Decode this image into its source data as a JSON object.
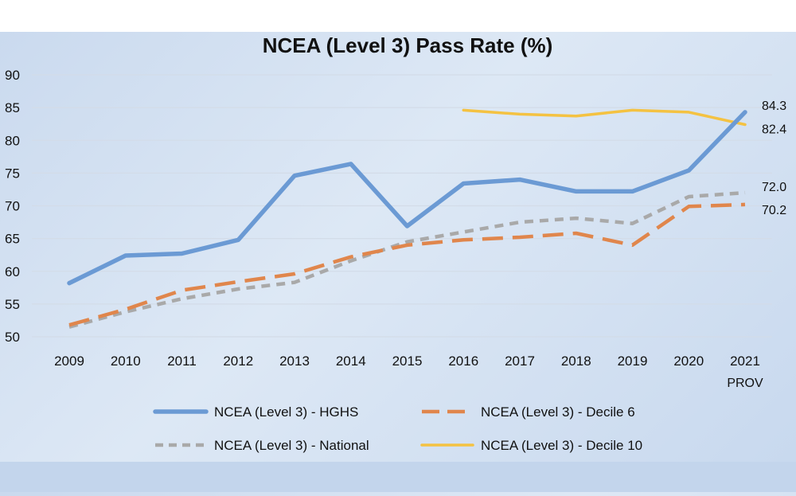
{
  "chart_data": {
    "type": "line",
    "title": "NCEA (Level 3) Pass Rate (%)",
    "xlabel": "",
    "ylabel": "",
    "categories": [
      "2009",
      "2010",
      "2011",
      "2012",
      "2013",
      "2014",
      "2015",
      "2016",
      "2017",
      "2018",
      "2019",
      "2020",
      "2021"
    ],
    "category_sublabels": [
      "",
      "",
      "",
      "",
      "",
      "",
      "",
      "",
      "",
      "",
      "",
      "",
      "PROV"
    ],
    "ylim": [
      50,
      90
    ],
    "yticks": [
      50,
      55,
      60,
      65,
      70,
      75,
      80,
      85,
      90
    ],
    "grid": true,
    "legend_position": "bottom",
    "series": [
      {
        "name": "NCEA (Level 3) - HGHS",
        "color": "#6b9ad4",
        "dash": "solid",
        "values": [
          58.2,
          62.4,
          62.7,
          64.8,
          74.6,
          76.4,
          66.9,
          73.4,
          74.0,
          72.2,
          72.2,
          75.4,
          84.3
        ],
        "end_label": "84.3"
      },
      {
        "name": "NCEA (Level 3) - Decile 6",
        "color": "#e0864c",
        "dash": "long-dash",
        "values": [
          51.8,
          54.2,
          57.1,
          58.4,
          59.6,
          62.2,
          64.0,
          64.8,
          65.2,
          65.8,
          64.0,
          69.9,
          70.2
        ],
        "end_label": "70.2"
      },
      {
        "name": "NCEA (Level 3) - National",
        "color": "#a9a9a9",
        "dash": "short-dash",
        "values": [
          51.5,
          53.8,
          55.8,
          57.3,
          58.3,
          61.6,
          64.5,
          66.0,
          67.5,
          68.1,
          67.3,
          71.4,
          72.0
        ],
        "end_label": "72.0"
      },
      {
        "name": "NCEA (Level 3) - Decile 10",
        "color": "#f4c242",
        "dash": "solid",
        "values": [
          null,
          null,
          null,
          null,
          null,
          null,
          null,
          84.6,
          84.0,
          83.7,
          84.6,
          84.3,
          82.4
        ],
        "end_label": "82.4"
      }
    ]
  }
}
